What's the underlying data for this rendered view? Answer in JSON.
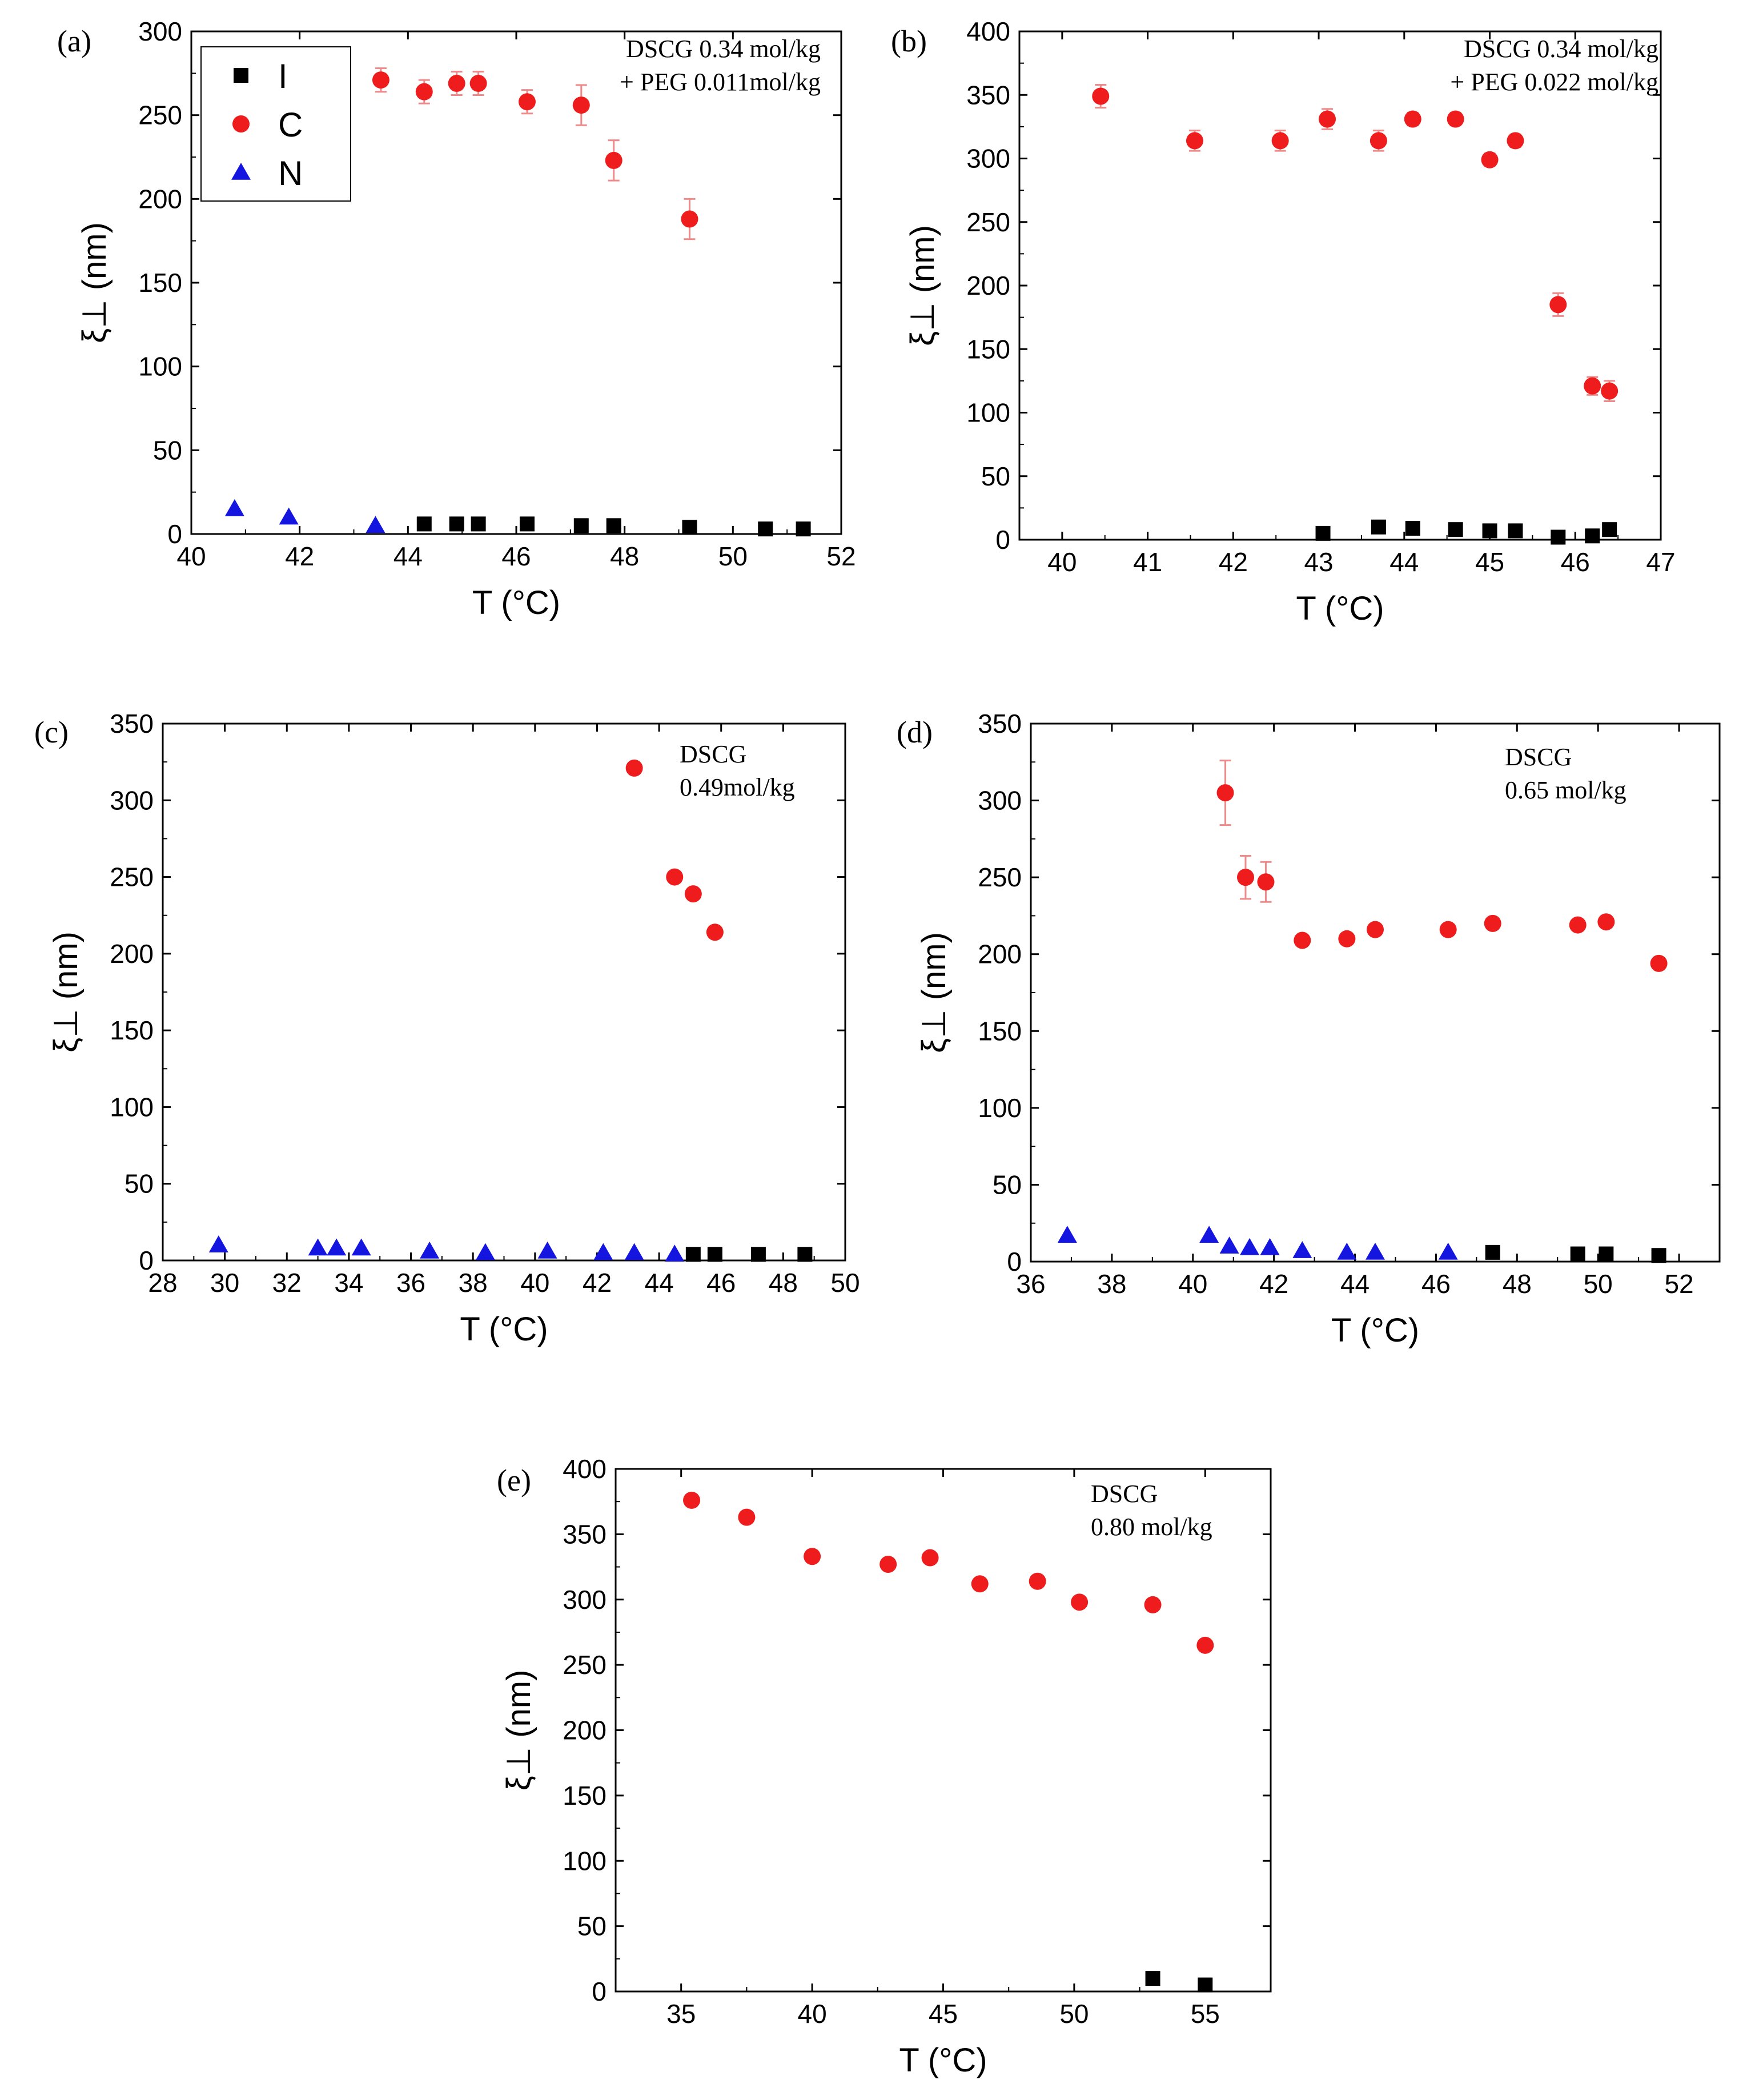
{
  "colors": {
    "I": "#000000",
    "C": "#ee1c1c",
    "N": "#1515e0",
    "errorbar": "#f08a8a"
  },
  "legend": {
    "entries": [
      {
        "key": "I",
        "label": "I"
      },
      {
        "key": "C",
        "label": "C"
      },
      {
        "key": "N",
        "label": "N"
      }
    ]
  },
  "chart_data": [
    {
      "panel": "a",
      "panel_label": "(a)",
      "type": "scatter",
      "xlabel": "T (°C)",
      "ylabel": "ξ⊥ (nm)",
      "annotation": [
        "DSCG 0.34 mol/kg",
        "+ PEG 0.011mol/kg"
      ],
      "xlim": [
        40,
        52
      ],
      "ylim": [
        0,
        300
      ],
      "xticks": [
        40,
        42,
        44,
        46,
        48,
        50,
        52
      ],
      "yticks": [
        0,
        50,
        100,
        150,
        200,
        250,
        300
      ],
      "series": [
        {
          "name": "I",
          "points": [
            [
              44.3,
              6
            ],
            [
              44.9,
              6
            ],
            [
              45.3,
              6
            ],
            [
              46.2,
              6
            ],
            [
              47.2,
              5
            ],
            [
              47.8,
              5
            ],
            [
              49.2,
              4
            ],
            [
              50.6,
              3
            ],
            [
              51.3,
              3
            ]
          ]
        },
        {
          "name": "C",
          "points": [
            [
              43.5,
              271,
              7
            ],
            [
              44.3,
              264,
              7
            ],
            [
              44.9,
              269,
              7
            ],
            [
              45.3,
              269,
              7
            ],
            [
              46.2,
              258,
              7
            ],
            [
              47.2,
              256,
              12
            ],
            [
              47.8,
              223,
              12
            ],
            [
              49.2,
              188,
              12
            ]
          ]
        },
        {
          "name": "N",
          "points": [
            [
              40.8,
              15
            ],
            [
              41.8,
              10
            ],
            [
              43.4,
              5
            ]
          ]
        }
      ]
    },
    {
      "panel": "b",
      "panel_label": "(b)",
      "type": "scatter",
      "xlabel": "T (°C)",
      "ylabel": "ξ⊥ (nm)",
      "annotation": [
        "DSCG 0.34 mol/kg",
        "+ PEG 0.022 mol/kg"
      ],
      "xlim": [
        39.5,
        47
      ],
      "ylim": [
        0,
        400
      ],
      "xticks": [
        40,
        41,
        42,
        43,
        44,
        45,
        46,
        47
      ],
      "yticks": [
        0,
        50,
        100,
        150,
        200,
        250,
        300,
        350,
        400
      ],
      "series": [
        {
          "name": "I",
          "points": [
            [
              43.05,
              5
            ],
            [
              43.7,
              10
            ],
            [
              44.1,
              9
            ],
            [
              44.6,
              8
            ],
            [
              45.0,
              7
            ],
            [
              45.3,
              7
            ],
            [
              45.8,
              2
            ],
            [
              46.2,
              3
            ],
            [
              46.4,
              8
            ]
          ]
        },
        {
          "name": "C",
          "points": [
            [
              40.45,
              349,
              9
            ],
            [
              41.55,
              314,
              8
            ],
            [
              42.55,
              314,
              8
            ],
            [
              43.1,
              331,
              8
            ],
            [
              43.7,
              314,
              8
            ],
            [
              44.1,
              331,
              5
            ],
            [
              44.6,
              331,
              5
            ],
            [
              45.0,
              299,
              5
            ],
            [
              45.3,
              314,
              5
            ],
            [
              45.8,
              185,
              9
            ],
            [
              46.2,
              121,
              7
            ],
            [
              46.4,
              117,
              8
            ]
          ]
        },
        {
          "name": "N",
          "points": []
        }
      ]
    },
    {
      "panel": "c",
      "panel_label": "(c)",
      "type": "scatter",
      "xlabel": "T (°C)",
      "ylabel": "ξ⊥ (nm)",
      "annotation": [
        "DSCG",
        "0.49mol/kg"
      ],
      "xlim": [
        28,
        50
      ],
      "ylim": [
        0,
        350
      ],
      "xticks": [
        28,
        30,
        32,
        34,
        36,
        38,
        40,
        42,
        44,
        46,
        48,
        50
      ],
      "yticks": [
        0,
        50,
        100,
        150,
        200,
        250,
        300,
        350
      ],
      "series": [
        {
          "name": "I",
          "points": [
            [
              45.1,
              4
            ],
            [
              45.8,
              4
            ],
            [
              47.2,
              4
            ],
            [
              48.7,
              4
            ]
          ]
        },
        {
          "name": "C",
          "points": [
            [
              43.2,
              321,
              0
            ],
            [
              44.5,
              250,
              0
            ],
            [
              45.1,
              239,
              0
            ],
            [
              45.8,
              214,
              0
            ]
          ]
        },
        {
          "name": "N",
          "points": [
            [
              29.8,
              10
            ],
            [
              33.0,
              8
            ],
            [
              33.6,
              8
            ],
            [
              34.4,
              8
            ],
            [
              36.6,
              6
            ],
            [
              38.4,
              5
            ],
            [
              40.4,
              6
            ],
            [
              42.2,
              5
            ],
            [
              43.2,
              5
            ],
            [
              44.5,
              4
            ]
          ]
        }
      ]
    },
    {
      "panel": "d",
      "panel_label": "(d)",
      "type": "scatter",
      "xlabel": "T (°C)",
      "ylabel": "ξ⊥ (nm)",
      "annotation": [
        "DSCG",
        "0.65 mol/kg"
      ],
      "xlim": [
        36,
        53
      ],
      "ylim": [
        0,
        350
      ],
      "xticks": [
        36,
        38,
        40,
        42,
        44,
        46,
        48,
        50,
        52
      ],
      "yticks": [
        0,
        50,
        100,
        150,
        200,
        250,
        300,
        350
      ],
      "series": [
        {
          "name": "I",
          "points": [
            [
              47.4,
              6
            ],
            [
              49.5,
              5
            ],
            [
              50.2,
              5
            ],
            [
              51.5,
              4
            ]
          ]
        },
        {
          "name": "C",
          "points": [
            [
              40.8,
              305,
              21
            ],
            [
              41.3,
              250,
              14
            ],
            [
              41.8,
              247,
              13
            ],
            [
              42.7,
              209,
              0
            ],
            [
              43.8,
              210,
              0
            ],
            [
              44.5,
              216,
              0
            ],
            [
              46.3,
              216,
              0
            ],
            [
              47.4,
              220,
              0
            ],
            [
              49.5,
              219,
              0
            ],
            [
              50.2,
              221,
              0
            ],
            [
              51.5,
              194,
              0
            ]
          ]
        },
        {
          "name": "N",
          "points": [
            [
              36.9,
              17
            ],
            [
              40.4,
              17
            ],
            [
              40.9,
              10
            ],
            [
              41.4,
              9
            ],
            [
              41.9,
              9
            ],
            [
              42.7,
              7
            ],
            [
              43.8,
              6
            ],
            [
              44.5,
              6
            ],
            [
              46.3,
              6
            ]
          ]
        }
      ]
    },
    {
      "panel": "e",
      "panel_label": "(e)",
      "type": "scatter",
      "xlabel": "T (°C)",
      "ylabel": "ξ⊥ (nm)",
      "annotation": [
        "DSCG",
        "0.80 mol/kg"
      ],
      "xlim": [
        32.5,
        57.5
      ],
      "ylim": [
        0,
        400
      ],
      "xticks": [
        35,
        40,
        45,
        50,
        55
      ],
      "yticks": [
        0,
        50,
        100,
        150,
        200,
        250,
        300,
        350,
        400
      ],
      "series": [
        {
          "name": "I",
          "points": [
            [
              53.0,
              10
            ],
            [
              55.0,
              5
            ]
          ]
        },
        {
          "name": "C",
          "points": [
            [
              35.4,
              376,
              0
            ],
            [
              37.5,
              363,
              0
            ],
            [
              40.0,
              333,
              0
            ],
            [
              42.9,
              327,
              0
            ],
            [
              44.5,
              332,
              0
            ],
            [
              46.4,
              312,
              0
            ],
            [
              48.6,
              314,
              0
            ],
            [
              50.2,
              298,
              0
            ],
            [
              53.0,
              296,
              0
            ],
            [
              55.0,
              265,
              0
            ]
          ]
        },
        {
          "name": "N",
          "points": []
        }
      ]
    }
  ]
}
